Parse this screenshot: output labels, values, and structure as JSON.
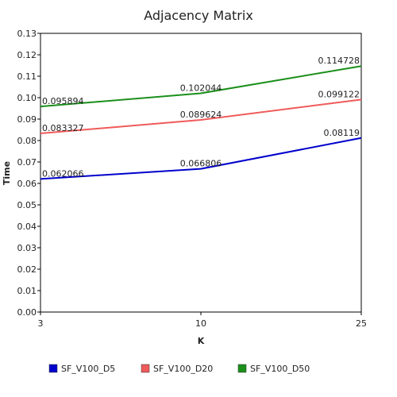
{
  "chart_data": {
    "type": "line",
    "title": "Adjacency Matrix",
    "xlabel": "K",
    "ylabel": "Time",
    "categories": [
      "3",
      "10",
      "25"
    ],
    "ylim": [
      0,
      0.13
    ],
    "yticks": [
      "0.00",
      "0.01",
      "0.02",
      "0.03",
      "0.04",
      "0.05",
      "0.06",
      "0.07",
      "0.08",
      "0.09",
      "0.10",
      "0.11",
      "0.12",
      "0.13"
    ],
    "grid": false,
    "legend_position": "bottom",
    "series": [
      {
        "name": "SF_V100_D5",
        "color": "#0000cc",
        "values": [
          0.062066,
          0.066806,
          0.08119
        ],
        "labels": [
          "0.062066",
          "0.066806",
          "0.08119"
        ]
      },
      {
        "name": "SF_V100_D20",
        "color": "#f05a5a",
        "values": [
          0.083327,
          0.089624,
          0.099122
        ],
        "labels": [
          "0.083327",
          "0.089624",
          "0.099122"
        ]
      },
      {
        "name": "SF_V100_D50",
        "color": "#1a8f1a",
        "values": [
          0.095894,
          0.102044,
          0.114728
        ],
        "labels": [
          "0.095894",
          "0.102044",
          "0.114728"
        ]
      }
    ]
  }
}
